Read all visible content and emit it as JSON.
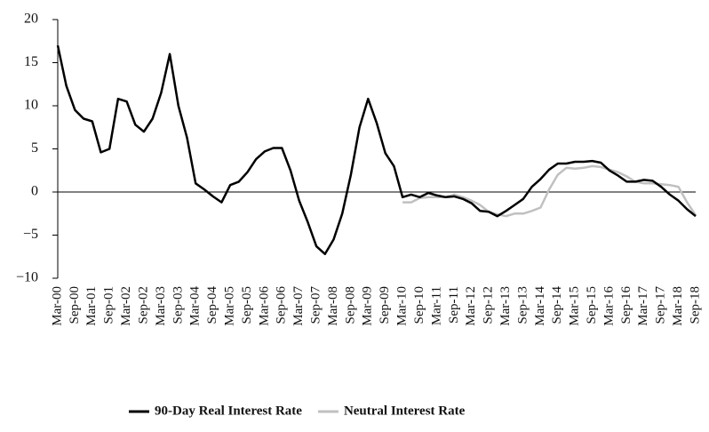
{
  "chart_data": {
    "type": "line",
    "categories": [
      "Mar-00",
      null,
      "Sep-00",
      null,
      "Mar-01",
      null,
      "Sep-01",
      null,
      "Mar-02",
      null,
      "Sep-02",
      null,
      "Mar-03",
      null,
      "Sep-03",
      null,
      "Mar-04",
      null,
      "Sep-04",
      null,
      "Mar-05",
      null,
      "Sep-05",
      null,
      "Mar-06",
      null,
      "Sep-06",
      null,
      "Mar-07",
      null,
      "Sep-07",
      null,
      "Mar-08",
      null,
      "Sep-08",
      null,
      "Mar-09",
      null,
      "Sep-09",
      null,
      "Mar-10",
      null,
      "Sep-10",
      null,
      "Mar-11",
      null,
      "Sep-11",
      null,
      "Mar-12",
      null,
      "Sep-12",
      null,
      "Mar-13",
      null,
      "Sep-13",
      null,
      "Mar-14",
      null,
      "Sep-14",
      null,
      "Mar-15",
      null,
      "Sep-15",
      null,
      "Mar-16",
      null,
      "Sep-16",
      null,
      "Mar-17",
      null,
      "Sep-17",
      null,
      "Mar-18",
      null,
      "Sep-18"
    ],
    "series": [
      {
        "name": "90-Day Real Interest Rate",
        "color": "#000000",
        "values": [
          17,
          12.3,
          9.5,
          8.5,
          8.2,
          4.6,
          5,
          10.8,
          10.5,
          7.8,
          7,
          8.5,
          11.5,
          16,
          10,
          6.3,
          1,
          0.3,
          -0.5,
          -1.2,
          0.8,
          1.2,
          2.3,
          3.8,
          4.7,
          5.1,
          5.1,
          2.5,
          -1,
          -3.5,
          -6.3,
          -7.2,
          -5.5,
          -2.5,
          2,
          7.5,
          10.8,
          8,
          4.5,
          3,
          -0.6,
          -0.3,
          -0.6,
          -0.1,
          -0.4,
          -0.6,
          -0.5,
          -0.8,
          -1.3,
          -2.2,
          -2.3,
          -2.8,
          -2.2,
          -1.5,
          -0.8,
          0.6,
          1.5,
          2.6,
          3.3,
          3.3,
          3.5,
          3.5,
          3.6,
          3.4,
          2.5,
          1.9,
          1.2,
          1.2,
          1.4,
          1.3,
          0.6,
          -0.3,
          -1,
          -2,
          -2.8
        ]
      },
      {
        "name": "Neutral Interest Rate",
        "color": "#c0c0c0",
        "values": [
          null,
          null,
          null,
          null,
          null,
          null,
          null,
          null,
          null,
          null,
          null,
          null,
          null,
          null,
          null,
          null,
          null,
          null,
          null,
          null,
          null,
          null,
          null,
          null,
          null,
          null,
          null,
          null,
          null,
          null,
          null,
          null,
          null,
          null,
          null,
          null,
          null,
          null,
          null,
          null,
          -1.2,
          -1.2,
          -0.7,
          -0.6,
          -0.6,
          -0.6,
          -0.3,
          -0.6,
          -1,
          -1.5,
          -2.3,
          -2.6,
          -2.8,
          -2.5,
          -2.5,
          -2.2,
          -1.8,
          0.3,
          2,
          2.8,
          2.7,
          2.8,
          3,
          2.9,
          2.6,
          2.3,
          1.8,
          1.2,
          1,
          1,
          0.9,
          0.8,
          0.6,
          -1.2,
          -2.7
        ]
      }
    ],
    "ylim": [
      -10,
      20
    ],
    "yticks": [
      20,
      15,
      10,
      5,
      0,
      {
        "value": -5,
        "label": "−5"
      },
      {
        "value": -10,
        "label": "−10"
      }
    ],
    "grid": false
  }
}
